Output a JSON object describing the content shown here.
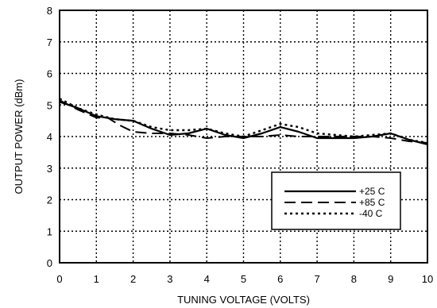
{
  "chart_data": {
    "type": "line",
    "title": "",
    "xlabel": "TUNING VOLTAGE (VOLTS)",
    "ylabel": "OUTPUT POWER (dBm)",
    "xlim": [
      0,
      10
    ],
    "ylim": [
      0,
      8
    ],
    "x_ticks": [
      0,
      1,
      2,
      3,
      4,
      5,
      6,
      7,
      8,
      9,
      10
    ],
    "y_ticks": [
      0,
      1,
      2,
      3,
      4,
      5,
      6,
      7,
      8
    ],
    "grid": "dotted",
    "legend_position": "lower-right",
    "series": [
      {
        "name": "+25 C",
        "style": "solid",
        "color": "#000000",
        "x": [
          0,
          0.5,
          1,
          1.5,
          2,
          2.5,
          3,
          3.5,
          4,
          4.5,
          5,
          5.5,
          6,
          6.5,
          7,
          7.5,
          8,
          8.5,
          9,
          9.5,
          10
        ],
        "values": [
          5.1,
          4.9,
          4.65,
          4.55,
          4.5,
          4.25,
          4.05,
          4.1,
          4.25,
          4.05,
          3.95,
          4.1,
          4.3,
          4.15,
          3.95,
          3.95,
          3.95,
          4.0,
          4.1,
          3.9,
          3.75
        ]
      },
      {
        "name": "+85 C",
        "style": "dashed",
        "color": "#000000",
        "x": [
          0,
          0.5,
          1,
          1.3,
          1.65,
          2,
          2.5,
          3,
          3.5,
          4,
          4.5,
          5,
          5.5,
          6,
          6.5,
          7,
          7.5,
          8,
          8.5,
          9,
          9.5,
          10
        ],
        "values": [
          5.15,
          4.85,
          4.6,
          4.6,
          4.35,
          4.15,
          4.1,
          4.1,
          4.05,
          3.95,
          4.0,
          4.0,
          4.0,
          4.05,
          4.0,
          4.0,
          4.0,
          4.0,
          4.0,
          3.95,
          3.85,
          3.8
        ]
      },
      {
        "name": "-40 C",
        "style": "dotted",
        "color": "#000000",
        "x": [
          0,
          0.5,
          1,
          1.5,
          2,
          2.5,
          3,
          3.5,
          4,
          4.5,
          5,
          5.5,
          6,
          6.5,
          7,
          7.5,
          8,
          8.5,
          9,
          9.5,
          10
        ],
        "values": [
          5.2,
          4.9,
          4.7,
          4.55,
          4.5,
          4.3,
          4.2,
          4.2,
          4.25,
          4.1,
          4.0,
          4.2,
          4.4,
          4.3,
          4.1,
          4.05,
          4.0,
          4.05,
          4.1,
          3.9,
          3.8
        ]
      }
    ]
  }
}
